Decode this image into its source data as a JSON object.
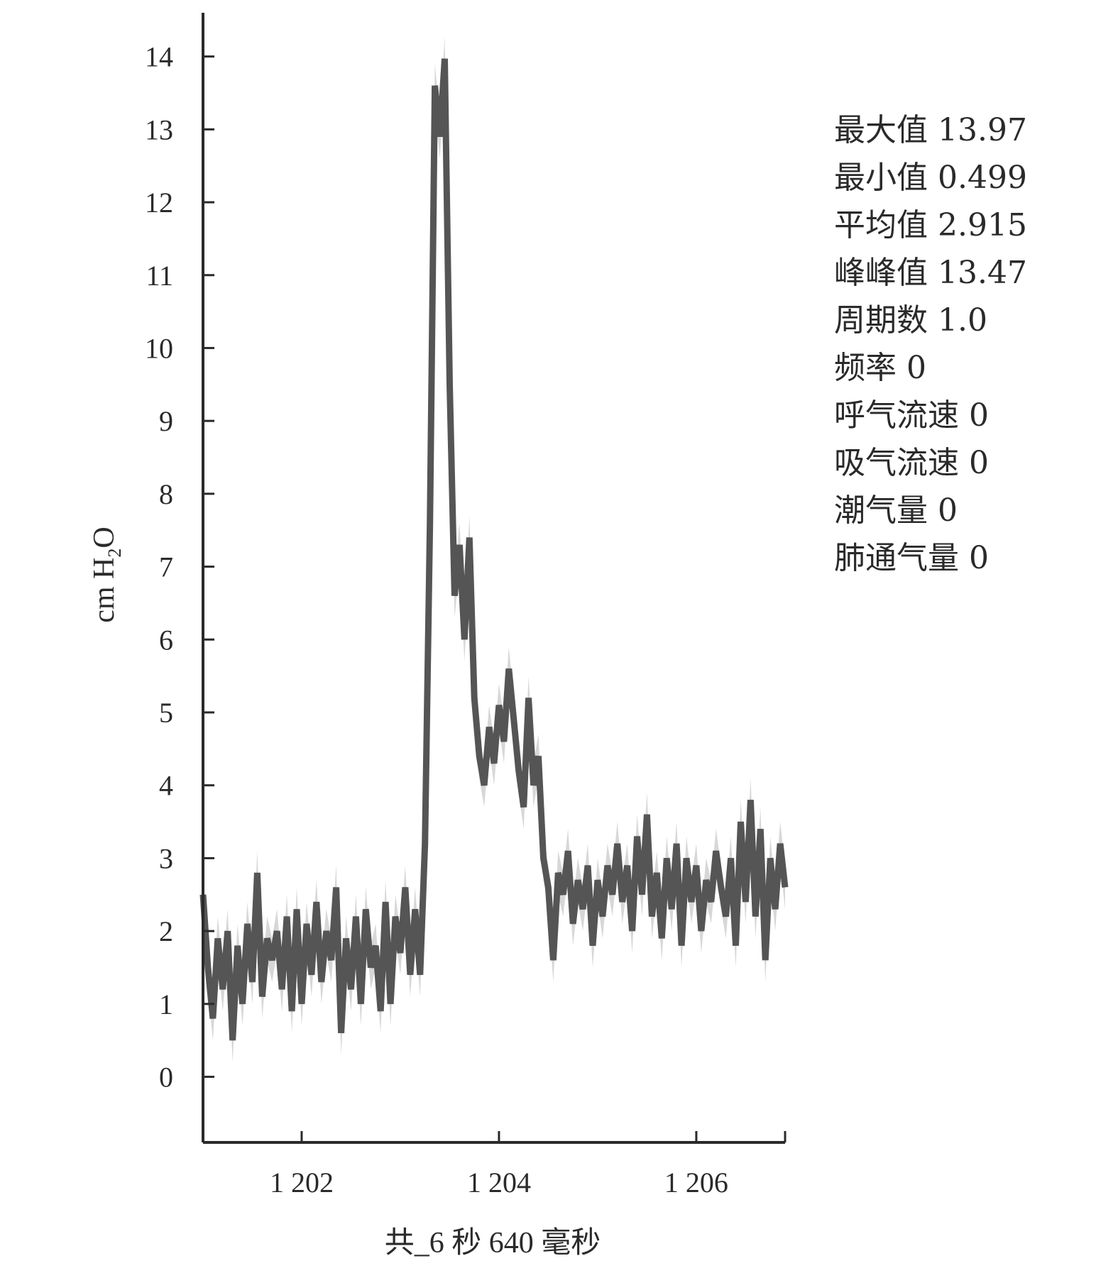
{
  "chart_data": {
    "type": "line",
    "ylabel": "cm H2O",
    "ylabel_parts": {
      "base": "cm H",
      "sub": "2",
      "tail": "O"
    },
    "xlabel": "共_6 秒 640 毫秒",
    "xticks": [
      {
        "value": 1202,
        "label": "1 202"
      },
      {
        "value": 1204,
        "label": "1 204"
      },
      {
        "value": 1206,
        "label": "1 206"
      }
    ],
    "yticks": [
      0,
      1,
      2,
      3,
      4,
      5,
      6,
      7,
      8,
      9,
      10,
      11,
      12,
      13,
      14
    ],
    "xlim": [
      1201.0,
      1206.9
    ],
    "ylim": [
      -0.9,
      14.6
    ],
    "series": [
      {
        "color": "#555555",
        "x": [
          1201.0,
          1201.05,
          1201.1,
          1201.15,
          1201.2,
          1201.25,
          1201.3,
          1201.35,
          1201.4,
          1201.45,
          1201.5,
          1201.55,
          1201.6,
          1201.65,
          1201.7,
          1201.75,
          1201.8,
          1201.85,
          1201.9,
          1201.95,
          1202.0,
          1202.05,
          1202.1,
          1202.15,
          1202.2,
          1202.25,
          1202.3,
          1202.35,
          1202.4,
          1202.45,
          1202.5,
          1202.55,
          1202.6,
          1202.65,
          1202.7,
          1202.75,
          1202.8,
          1202.85,
          1202.9,
          1202.95,
          1203.0,
          1203.05,
          1203.1,
          1203.15,
          1203.2,
          1203.25,
          1203.3,
          1203.35,
          1203.4,
          1203.45,
          1203.5,
          1203.55,
          1203.6,
          1203.65,
          1203.7,
          1203.75,
          1203.8,
          1203.85,
          1203.9,
          1203.95,
          1204.0,
          1204.05,
          1204.1,
          1204.15,
          1204.2,
          1204.25,
          1204.3,
          1204.35,
          1204.4,
          1204.45,
          1204.5,
          1204.55,
          1204.6,
          1204.65,
          1204.7,
          1204.75,
          1204.8,
          1204.85,
          1204.9,
          1204.95,
          1205.0,
          1205.05,
          1205.1,
          1205.15,
          1205.2,
          1205.25,
          1205.3,
          1205.35,
          1205.4,
          1205.45,
          1205.5,
          1205.55,
          1205.6,
          1205.65,
          1205.7,
          1205.75,
          1205.8,
          1205.85,
          1205.9,
          1205.95,
          1206.0,
          1206.05,
          1206.1,
          1206.15,
          1206.2,
          1206.25,
          1206.3,
          1206.35,
          1206.4,
          1206.45,
          1206.5,
          1206.55,
          1206.6,
          1206.65,
          1206.7,
          1206.75,
          1206.8,
          1206.85,
          1206.9
        ],
        "values": [
          2.5,
          1.5,
          0.8,
          1.9,
          1.2,
          2.0,
          0.5,
          1.8,
          1.0,
          2.1,
          1.3,
          2.8,
          1.1,
          1.9,
          1.6,
          2.0,
          1.2,
          2.2,
          0.9,
          2.3,
          1.0,
          2.1,
          1.4,
          2.4,
          1.3,
          2.0,
          1.6,
          2.6,
          0.6,
          1.9,
          1.2,
          2.2,
          1.0,
          2.3,
          1.5,
          1.8,
          0.9,
          2.4,
          1.0,
          2.2,
          1.7,
          2.6,
          1.4,
          2.3,
          1.4,
          3.2,
          7.6,
          13.6,
          12.9,
          13.97,
          9.5,
          6.6,
          7.3,
          6.0,
          7.4,
          5.2,
          4.4,
          4.0,
          4.8,
          4.3,
          5.1,
          4.6,
          5.6,
          4.9,
          4.2,
          3.7,
          5.2,
          4.0,
          4.4,
          3.0,
          2.6,
          1.6,
          2.8,
          2.5,
          3.1,
          2.1,
          2.7,
          2.3,
          2.9,
          1.8,
          2.7,
          2.2,
          2.9,
          2.5,
          3.2,
          2.4,
          2.9,
          2.0,
          3.3,
          2.5,
          3.6,
          2.2,
          2.8,
          1.9,
          3.0,
          2.3,
          3.2,
          1.8,
          3.0,
          2.4,
          2.9,
          2.0,
          2.7,
          2.4,
          3.1,
          2.6,
          2.2,
          3.0,
          1.8,
          3.5,
          2.4,
          3.8,
          2.2,
          3.4,
          1.6,
          3.0,
          2.3,
          3.2,
          2.6
        ],
        "band": 0.3
      }
    ]
  },
  "stats": [
    {
      "label": "最大值",
      "value": "13.97"
    },
    {
      "label": "最小值",
      "value": "0.499"
    },
    {
      "label": "平均值",
      "value": "2.915"
    },
    {
      "label": "峰峰值",
      "value": "13.47"
    },
    {
      "label": "周期数",
      "value": "1.0"
    },
    {
      "label": "频率",
      "value": "0"
    },
    {
      "label": "呼气流速",
      "value": "0"
    },
    {
      "label": "吸气流速",
      "value": "0"
    },
    {
      "label": "潮气量",
      "value": "0"
    },
    {
      "label": "肺通气量",
      "value": "0"
    }
  ]
}
